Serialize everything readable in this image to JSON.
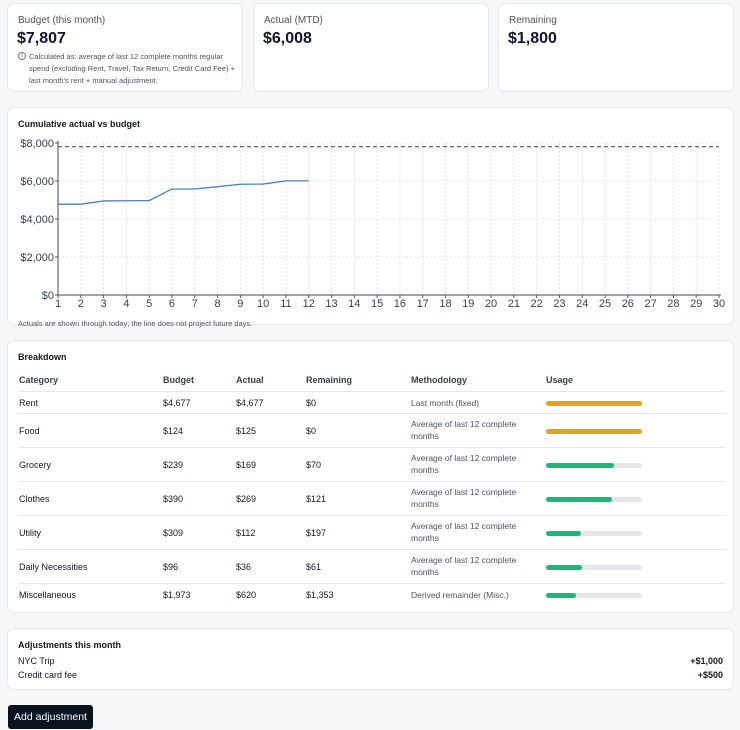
{
  "kpis": {
    "budget": {
      "label": "Budget (this month)",
      "value": "$7,807",
      "note": "Calculated as: average of last 12 complete months regular spend (excluding Rent, Travel, Tax Return, Credit Card Fee) + last month's rent + manual adjustment."
    },
    "actual": {
      "label": "Actual (MTD)",
      "value": "$6,008"
    },
    "remaining": {
      "label": "Remaining",
      "value": "$1,800"
    }
  },
  "chart": {
    "title": "Cumulative actual vs budget",
    "footnote": "Actuals are shown through today; the line does not project future days."
  },
  "chart_data": {
    "type": "line",
    "x": [
      1,
      2,
      3,
      4,
      5,
      6,
      7,
      8,
      9,
      10,
      11,
      12
    ],
    "series": [
      {
        "values": [
          4780,
          4780,
          4950,
          4960,
          4970,
          5580,
          5580,
          5700,
          5830,
          5840,
          6008,
          6008
        ]
      }
    ],
    "budget_line": 7807,
    "xlim": [
      1,
      30
    ],
    "ylim": [
      0,
      8000
    ],
    "x_ticks": [
      "1",
      "2",
      "3",
      "4",
      "5",
      "6",
      "7",
      "8",
      "9",
      "10",
      "11",
      "12",
      "13",
      "14",
      "15",
      "16",
      "17",
      "18",
      "19",
      "20",
      "21",
      "22",
      "23",
      "24",
      "25",
      "26",
      "27",
      "28",
      "29",
      "30"
    ],
    "y_ticks": [
      "$0",
      "$2,000",
      "$4,000",
      "$6,000",
      "$8,000"
    ],
    "y_tick_values": [
      0,
      2000,
      4000,
      6000,
      8000
    ],
    "grid": true,
    "colors": {
      "actual": "#4a7fc1",
      "budget": "#555555"
    }
  },
  "breakdown": {
    "title": "Breakdown",
    "headers": [
      "Category",
      "Budget",
      "Actual",
      "Remaining",
      "Methodology",
      "Usage"
    ],
    "rows": [
      {
        "category": "Rent",
        "budget": "$4,677",
        "actual": "$4,677",
        "remaining": "$0",
        "methodology": "Last month (fixed)",
        "usage": 1.0,
        "color": "#e4a31c"
      },
      {
        "category": "Food",
        "budget": "$124",
        "actual": "$125",
        "remaining": "$0",
        "methodology": "Average of last 12 complete months",
        "usage": 1.0,
        "color": "#e4a31c"
      },
      {
        "category": "Grocery",
        "budget": "$239",
        "actual": "$169",
        "remaining": "$70",
        "methodology": "Average of last 12 complete months",
        "usage": 0.71,
        "color": "#1db876"
      },
      {
        "category": "Clothes",
        "budget": "$390",
        "actual": "$269",
        "remaining": "$121",
        "methodology": "Average of last 12 complete months",
        "usage": 0.69,
        "color": "#1db876"
      },
      {
        "category": "Utility",
        "budget": "$309",
        "actual": "$112",
        "remaining": "$197",
        "methodology": "Average of last 12 complete months",
        "usage": 0.36,
        "color": "#1db876"
      },
      {
        "category": "Daily Necessities",
        "budget": "$96",
        "actual": "$36",
        "remaining": "$61",
        "methodology": "Average of last 12 complete months",
        "usage": 0.38,
        "color": "#1db876"
      },
      {
        "category": "Miscellaneous",
        "budget": "$1,973",
        "actual": "$620",
        "remaining": "$1,353",
        "methodology": "Derived remainder (Misc.)",
        "usage": 0.31,
        "color": "#1db876"
      }
    ]
  },
  "adjustments": {
    "title": "Adjustments this month",
    "items": [
      {
        "label": "NYC Trip",
        "amount": "+$1,000"
      },
      {
        "label": "Credit card fee",
        "amount": "+$500"
      }
    ]
  },
  "actions": {
    "add_adjustment": "Add adjustment"
  }
}
